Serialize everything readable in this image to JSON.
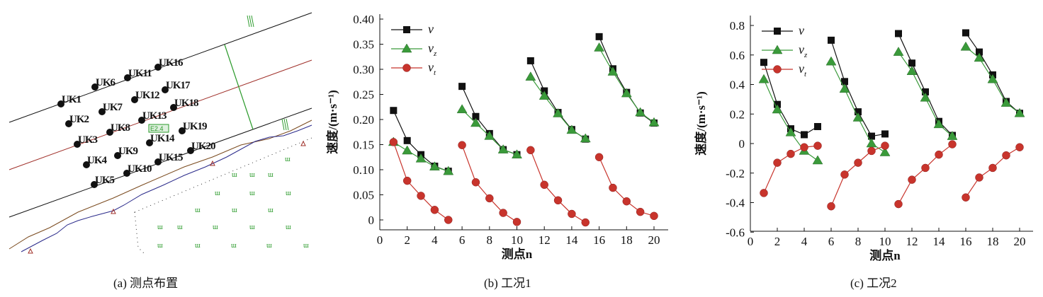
{
  "panel_a": {
    "caption": "(a) 测点布置",
    "points": [
      "UK1",
      "UK2",
      "UK3",
      "UK4",
      "UK5",
      "UK6",
      "UK7",
      "UK8",
      "UK9",
      "UK10",
      "UK11",
      "UK12",
      "UK13",
      "UK14",
      "UK15",
      "UK16",
      "UK17",
      "UK18",
      "UK19",
      "UK20"
    ],
    "elevation_tag": "E2.4",
    "colors": {
      "points": "#111111",
      "red_line": "#a0302a",
      "brown_line": "#7a4a1e",
      "blue_line": "#2a2a8a",
      "green": "#2a9a2a"
    }
  },
  "chart_data": [
    {
      "type": "line",
      "caption": "(b) 工况1",
      "xlabel": "测点n",
      "ylabel": "速度/(m·s⁻¹)",
      "xlim": [
        0,
        21
      ],
      "ylim": [
        -0.02,
        0.4
      ],
      "xticks": [
        "0",
        "2",
        "4",
        "6",
        "8",
        "10",
        "12",
        "14",
        "16",
        "18",
        "20"
      ],
      "yticks": [
        "0",
        "0.05",
        "0.10",
        "0.15",
        "0.20",
        "0.25",
        "0.30",
        "0.35",
        "0.40"
      ],
      "legend_position": "top-left",
      "x": [
        1,
        2,
        3,
        4,
        5,
        6,
        7,
        8,
        9,
        10,
        11,
        12,
        13,
        14,
        15,
        16,
        17,
        18,
        19,
        20
      ],
      "groups": 4,
      "series": [
        {
          "name": "v",
          "sub": "",
          "color": "#111111",
          "marker": "square",
          "values": [
            0.218,
            0.158,
            0.13,
            0.107,
            0.097,
            0.266,
            0.206,
            0.172,
            0.14,
            0.13,
            0.317,
            0.257,
            0.214,
            0.18,
            0.161,
            0.365,
            0.301,
            0.254,
            0.213,
            0.193
          ]
        },
        {
          "name": "v",
          "sub": "z",
          "color": "#3a9a3a",
          "marker": "triangle",
          "values": [
            0.155,
            0.138,
            0.122,
            0.106,
            0.097,
            0.22,
            0.193,
            0.167,
            0.14,
            0.13,
            0.285,
            0.247,
            0.212,
            0.179,
            0.162,
            0.343,
            0.295,
            0.252,
            0.214,
            0.194
          ]
        },
        {
          "name": "v",
          "sub": "t",
          "color": "#c8342c",
          "marker": "circle",
          "values": [
            0.155,
            0.078,
            0.048,
            0.02,
            0.0,
            0.149,
            0.075,
            0.043,
            0.014,
            -0.004,
            0.139,
            0.07,
            0.039,
            0.012,
            -0.005,
            0.125,
            0.064,
            0.037,
            0.016,
            0.008
          ]
        }
      ]
    },
    {
      "type": "line",
      "caption": "(c) 工况2",
      "xlabel": "测点n",
      "ylabel": "速度/(m·s⁻¹)",
      "xlim": [
        0,
        21
      ],
      "ylim": [
        -0.6,
        0.85
      ],
      "xticks": [
        "0",
        "2",
        "4",
        "6",
        "8",
        "10",
        "12",
        "14",
        "16",
        "18",
        "20"
      ],
      "yticks": [
        "-0.6",
        "-0.4",
        "-0.2",
        "0",
        "0.2",
        "0.4",
        "0.6",
        "0.8"
      ],
      "legend_position": "top-left",
      "x": [
        1,
        2,
        3,
        4,
        5,
        6,
        7,
        8,
        9,
        10,
        11,
        12,
        13,
        14,
        15,
        16,
        17,
        18,
        19,
        20
      ],
      "groups": 4,
      "series": [
        {
          "name": "v",
          "sub": "",
          "color": "#111111",
          "marker": "square",
          "values": [
            0.55,
            0.265,
            0.1,
            0.06,
            0.115,
            0.7,
            0.42,
            0.215,
            0.05,
            0.065,
            0.745,
            0.545,
            0.35,
            0.15,
            0.055,
            0.75,
            0.62,
            0.465,
            0.285,
            0.205
          ]
        },
        {
          "name": "v",
          "sub": "z",
          "color": "#3a9a3a",
          "marker": "triangle",
          "values": [
            0.435,
            0.23,
            0.075,
            -0.05,
            -0.115,
            0.555,
            0.37,
            0.175,
            0.0,
            -0.06,
            0.62,
            0.49,
            0.31,
            0.13,
            0.05,
            0.655,
            0.58,
            0.435,
            0.275,
            0.205
          ]
        },
        {
          "name": "v",
          "sub": "t",
          "color": "#c8342c",
          "marker": "circle",
          "values": [
            -0.335,
            -0.13,
            -0.07,
            -0.025,
            -0.015,
            -0.425,
            -0.21,
            -0.13,
            -0.05,
            -0.015,
            -0.41,
            -0.245,
            -0.165,
            -0.075,
            -0.005,
            -0.365,
            -0.23,
            -0.165,
            -0.08,
            -0.025
          ]
        }
      ]
    }
  ]
}
